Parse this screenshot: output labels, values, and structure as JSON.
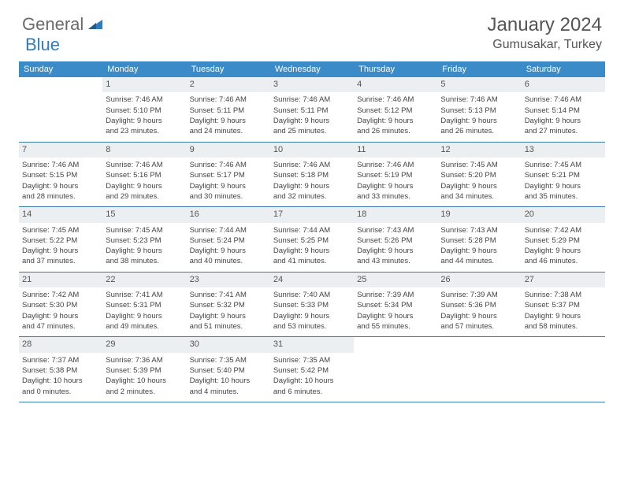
{
  "logo": {
    "text1": "General",
    "text2": "Blue"
  },
  "title": "January 2024",
  "location": "Gumusakar, Turkey",
  "weekdays": [
    "Sunday",
    "Monday",
    "Tuesday",
    "Wednesday",
    "Thursday",
    "Friday",
    "Saturday"
  ],
  "colors": {
    "header_bg": "#3a8bc8",
    "daynum_bg": "#eceff1",
    "border": "#3a7aa8",
    "logo_gray": "#6a6a6a",
    "logo_blue": "#2f7cc0",
    "text": "#444"
  },
  "first_weekday_offset": 1,
  "days": [
    {
      "n": 1,
      "sunrise": "7:46 AM",
      "sunset": "5:10 PM",
      "dl1": "9 hours",
      "dl2": "23 minutes"
    },
    {
      "n": 2,
      "sunrise": "7:46 AM",
      "sunset": "5:11 PM",
      "dl1": "9 hours",
      "dl2": "24 minutes"
    },
    {
      "n": 3,
      "sunrise": "7:46 AM",
      "sunset": "5:11 PM",
      "dl1": "9 hours",
      "dl2": "25 minutes"
    },
    {
      "n": 4,
      "sunrise": "7:46 AM",
      "sunset": "5:12 PM",
      "dl1": "9 hours",
      "dl2": "26 minutes"
    },
    {
      "n": 5,
      "sunrise": "7:46 AM",
      "sunset": "5:13 PM",
      "dl1": "9 hours",
      "dl2": "26 minutes"
    },
    {
      "n": 6,
      "sunrise": "7:46 AM",
      "sunset": "5:14 PM",
      "dl1": "9 hours",
      "dl2": "27 minutes"
    },
    {
      "n": 7,
      "sunrise": "7:46 AM",
      "sunset": "5:15 PM",
      "dl1": "9 hours",
      "dl2": "28 minutes"
    },
    {
      "n": 8,
      "sunrise": "7:46 AM",
      "sunset": "5:16 PM",
      "dl1": "9 hours",
      "dl2": "29 minutes"
    },
    {
      "n": 9,
      "sunrise": "7:46 AM",
      "sunset": "5:17 PM",
      "dl1": "9 hours",
      "dl2": "30 minutes"
    },
    {
      "n": 10,
      "sunrise": "7:46 AM",
      "sunset": "5:18 PM",
      "dl1": "9 hours",
      "dl2": "32 minutes"
    },
    {
      "n": 11,
      "sunrise": "7:46 AM",
      "sunset": "5:19 PM",
      "dl1": "9 hours",
      "dl2": "33 minutes"
    },
    {
      "n": 12,
      "sunrise": "7:45 AM",
      "sunset": "5:20 PM",
      "dl1": "9 hours",
      "dl2": "34 minutes"
    },
    {
      "n": 13,
      "sunrise": "7:45 AM",
      "sunset": "5:21 PM",
      "dl1": "9 hours",
      "dl2": "35 minutes"
    },
    {
      "n": 14,
      "sunrise": "7:45 AM",
      "sunset": "5:22 PM",
      "dl1": "9 hours",
      "dl2": "37 minutes"
    },
    {
      "n": 15,
      "sunrise": "7:45 AM",
      "sunset": "5:23 PM",
      "dl1": "9 hours",
      "dl2": "38 minutes"
    },
    {
      "n": 16,
      "sunrise": "7:44 AM",
      "sunset": "5:24 PM",
      "dl1": "9 hours",
      "dl2": "40 minutes"
    },
    {
      "n": 17,
      "sunrise": "7:44 AM",
      "sunset": "5:25 PM",
      "dl1": "9 hours",
      "dl2": "41 minutes"
    },
    {
      "n": 18,
      "sunrise": "7:43 AM",
      "sunset": "5:26 PM",
      "dl1": "9 hours",
      "dl2": "43 minutes"
    },
    {
      "n": 19,
      "sunrise": "7:43 AM",
      "sunset": "5:28 PM",
      "dl1": "9 hours",
      "dl2": "44 minutes"
    },
    {
      "n": 20,
      "sunrise": "7:42 AM",
      "sunset": "5:29 PM",
      "dl1": "9 hours",
      "dl2": "46 minutes"
    },
    {
      "n": 21,
      "sunrise": "7:42 AM",
      "sunset": "5:30 PM",
      "dl1": "9 hours",
      "dl2": "47 minutes"
    },
    {
      "n": 22,
      "sunrise": "7:41 AM",
      "sunset": "5:31 PM",
      "dl1": "9 hours",
      "dl2": "49 minutes"
    },
    {
      "n": 23,
      "sunrise": "7:41 AM",
      "sunset": "5:32 PM",
      "dl1": "9 hours",
      "dl2": "51 minutes"
    },
    {
      "n": 24,
      "sunrise": "7:40 AM",
      "sunset": "5:33 PM",
      "dl1": "9 hours",
      "dl2": "53 minutes"
    },
    {
      "n": 25,
      "sunrise": "7:39 AM",
      "sunset": "5:34 PM",
      "dl1": "9 hours",
      "dl2": "55 minutes"
    },
    {
      "n": 26,
      "sunrise": "7:39 AM",
      "sunset": "5:36 PM",
      "dl1": "9 hours",
      "dl2": "57 minutes"
    },
    {
      "n": 27,
      "sunrise": "7:38 AM",
      "sunset": "5:37 PM",
      "dl1": "9 hours",
      "dl2": "58 minutes"
    },
    {
      "n": 28,
      "sunrise": "7:37 AM",
      "sunset": "5:38 PM",
      "dl1": "10 hours",
      "dl2": "0 minutes"
    },
    {
      "n": 29,
      "sunrise": "7:36 AM",
      "sunset": "5:39 PM",
      "dl1": "10 hours",
      "dl2": "2 minutes"
    },
    {
      "n": 30,
      "sunrise": "7:35 AM",
      "sunset": "5:40 PM",
      "dl1": "10 hours",
      "dl2": "4 minutes"
    },
    {
      "n": 31,
      "sunrise": "7:35 AM",
      "sunset": "5:42 PM",
      "dl1": "10 hours",
      "dl2": "6 minutes"
    }
  ]
}
